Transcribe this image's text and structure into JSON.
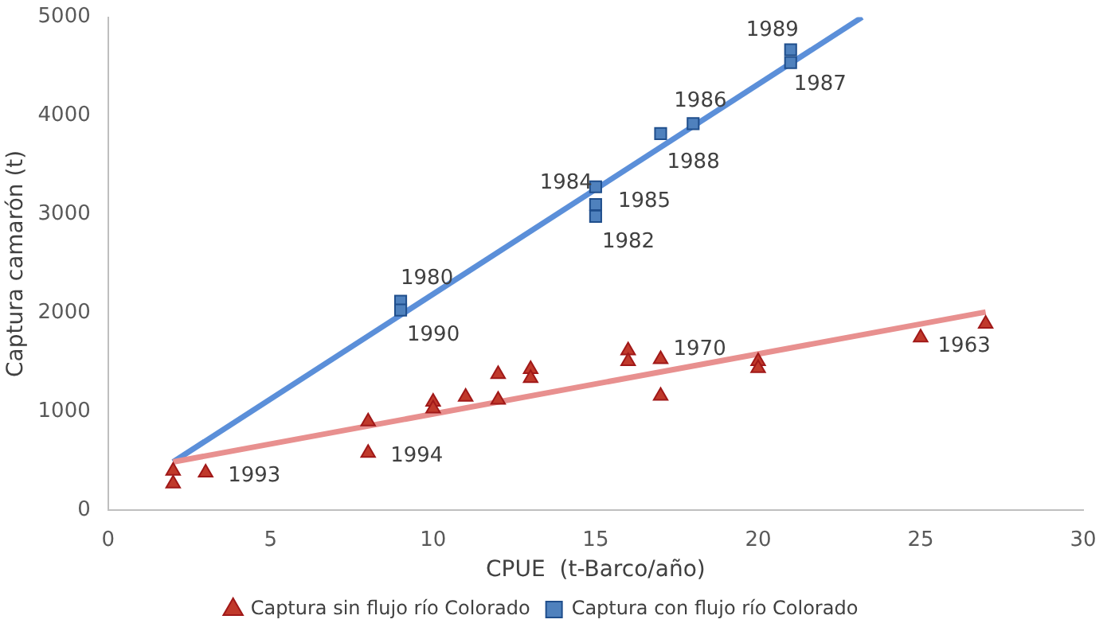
{
  "chart_data": {
    "type": "scatter",
    "xlabel": "CPUE  (t-Barco/año)",
    "ylabel": "Captura camarón (t)",
    "xlim": [
      0,
      30
    ],
    "xticks": [
      0,
      5,
      10,
      15,
      20,
      25,
      30
    ],
    "ylim": [
      0,
      5000
    ],
    "yticks": [
      0,
      1000,
      2000,
      3000,
      4000,
      5000
    ],
    "grid": false,
    "legend": "bottom",
    "series": [
      {
        "name": "Captura sin flujo río Colorado",
        "color": "#c0392b",
        "marker": "triangle",
        "x": [
          2,
          2,
          3,
          8,
          8,
          10,
          10,
          11,
          12,
          12,
          13,
          13,
          16,
          16,
          17,
          17,
          20,
          20,
          25,
          27
        ],
        "values": [
          400,
          270,
          380,
          900,
          580,
          1100,
          1030,
          1150,
          1380,
          1120,
          1430,
          1340,
          1620,
          1510,
          1530,
          1160,
          1510,
          1440,
          1750,
          1890
        ]
      },
      {
        "name": "Captura con flujo río Colorado",
        "color": "#4f81bd",
        "marker": "square",
        "x": [
          9,
          9,
          15,
          15,
          15,
          17,
          18,
          21,
          21
        ],
        "values": [
          2120,
          2030,
          3280,
          3100,
          2980,
          3820,
          3920,
          4670,
          4540
        ]
      },
      {
        "type": "line",
        "color": "#e8908f",
        "marker": "none",
        "x": [
          2,
          27
        ],
        "values": [
          490,
          2010
        ]
      },
      {
        "type": "line",
        "color": "#5b8fd9",
        "marker": "none",
        "x": [
          2,
          23.2
        ],
        "values": [
          490,
          5000
        ]
      }
    ],
    "annotations": [
      {
        "text": "1980",
        "x": 9,
        "y": 2120
      },
      {
        "text": "1990",
        "x": 9,
        "y": 2030
      },
      {
        "text": "1984",
        "x": 15,
        "y": 3280
      },
      {
        "text": "1985",
        "x": 15,
        "y": 3100
      },
      {
        "text": "1982",
        "x": 15,
        "y": 2980
      },
      {
        "text": "1988",
        "x": 17,
        "y": 3820
      },
      {
        "text": "1986",
        "x": 18,
        "y": 3920
      },
      {
        "text": "1989",
        "x": 21,
        "y": 4670
      },
      {
        "text": "1987",
        "x": 21,
        "y": 4540
      },
      {
        "text": "1993",
        "x": 3,
        "y": 380
      },
      {
        "text": "1994",
        "x": 8,
        "y": 580
      },
      {
        "text": "1970",
        "x": 17,
        "y": 1530
      },
      {
        "text": "1963",
        "x": 27,
        "y": 1890
      }
    ]
  }
}
